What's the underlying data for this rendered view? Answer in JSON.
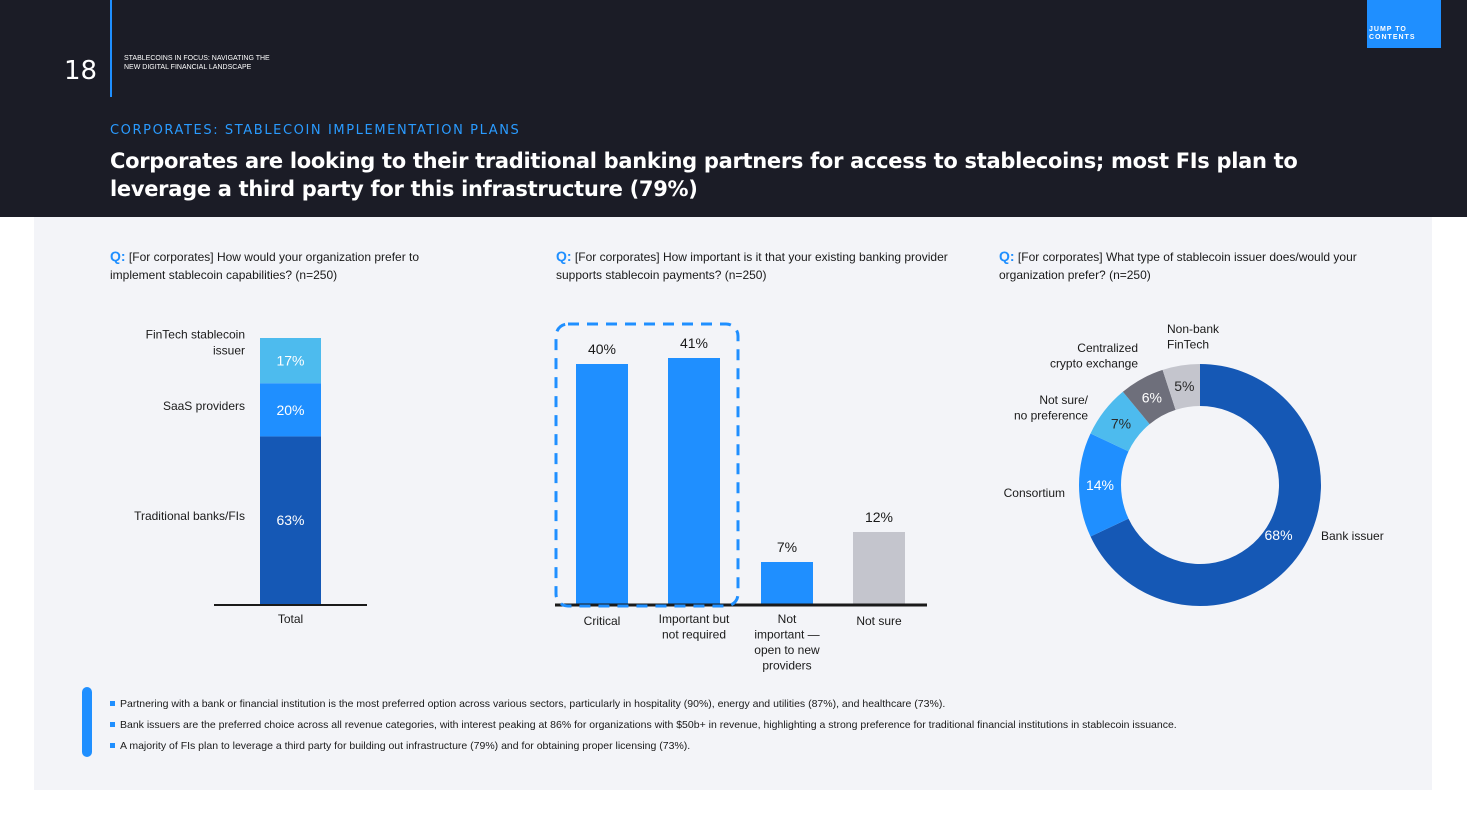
{
  "header": {
    "page_number": "18",
    "doc_title": "STABLECOINS IN FOCUS: NAVIGATING THE NEW DIGITAL FINANCIAL LANDSCAPE",
    "jump_button": "JUMP TO CONTENTS",
    "section_label": "CORPORATES: STABLECOIN IMPLEMENTATION PLANS",
    "headline": "Corporates are looking to their traditional banking partners for access to stablecoins; most FIs plan to leverage a third party for this infrastructure (79%)"
  },
  "questions": [
    {
      "prefix": "Q:",
      "text": "[For corporates] How would your organization prefer to implement stablecoin capabilities? (n=250)"
    },
    {
      "prefix": "Q:",
      "text": "[For corporates] How important is it that your existing banking provider supports stablecoin payments? (n=250)"
    },
    {
      "prefix": "Q:",
      "text": "[For corporates] What type of stablecoin issuer does/would your organization prefer? (n=250)"
    }
  ],
  "chart_data": [
    {
      "type": "bar",
      "stacked": true,
      "categories": [
        "Total"
      ],
      "series": [
        {
          "name": "Traditional banks/FIs",
          "values": [
            63
          ],
          "label": "63%",
          "color": "#1558b5"
        },
        {
          "name": "SaaS providers",
          "values": [
            20
          ],
          "label": "20%",
          "color": "#1f8fff"
        },
        {
          "name": "FinTech stablecoin issuer",
          "values": [
            17
          ],
          "label": "17%",
          "color": "#4dbbee"
        }
      ],
      "ylim": [
        0,
        100
      ]
    },
    {
      "type": "bar",
      "categories": [
        "Critical",
        "Important but not required",
        "Not important — open to new providers",
        "Not sure"
      ],
      "values": [
        40,
        41,
        7,
        12
      ],
      "labels": [
        "40%",
        "41%",
        "7%",
        "12%"
      ],
      "colors": [
        "#1f8fff",
        "#1f8fff",
        "#1f8fff",
        "#c4c5cd"
      ],
      "highlight": [
        "Critical",
        "Important but not required"
      ],
      "ylim": [
        0,
        41
      ]
    },
    {
      "type": "pie",
      "donut": true,
      "slices": [
        {
          "name": "Bank issuer",
          "value": 68,
          "label": "68%",
          "color": "#1558b5"
        },
        {
          "name": "Consortium",
          "value": 14,
          "label": "14%",
          "color": "#1f8fff"
        },
        {
          "name": "Not sure/ no preference",
          "value": 7,
          "label": "7%",
          "color": "#4dbbee"
        },
        {
          "name": "Centralized crypto exchange",
          "value": 6,
          "label": "6%",
          "color": "#6e6f7b"
        },
        {
          "name": "Non-bank FinTech",
          "value": 5,
          "label": "5%",
          "color": "#c4c5cd"
        }
      ]
    }
  ],
  "bullets": [
    "Partnering with a bank or financial institution is the most preferred option across various sectors, particularly in hospitality (90%), energy and utilities (87%), and healthcare (73%).",
    "Bank issuers are the preferred choice across all revenue categories, with interest peaking at 86% for organizations with $50b+ in revenue, highlighting a strong preference for traditional financial institutions in stablecoin issuance.",
    "A majority of FIs plan to leverage a third party for building out infrastructure (79%) and for obtaining proper licensing (73%)."
  ]
}
